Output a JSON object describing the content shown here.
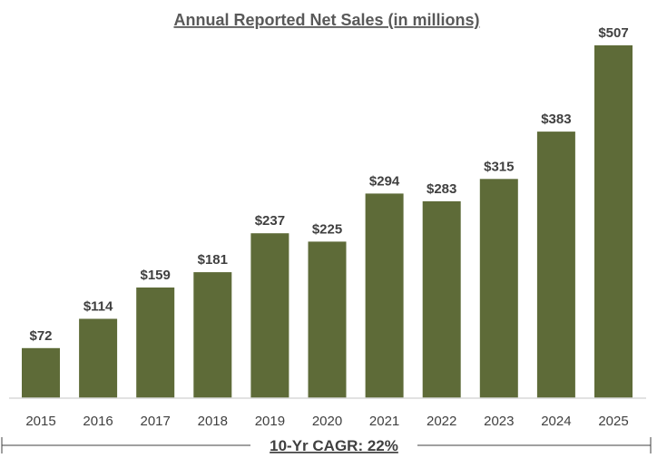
{
  "chart_data": {
    "type": "bar",
    "title": "Annual Reported Net Sales (in millions)",
    "categories": [
      "2015",
      "2016",
      "2017",
      "2018",
      "2019",
      "2020",
      "2021",
      "2022",
      "2023",
      "2024",
      "2025"
    ],
    "values": [
      72,
      114,
      159,
      181,
      237,
      225,
      294,
      283,
      315,
      383,
      507
    ],
    "value_labels": [
      "$72",
      "$114",
      "$159",
      "$181",
      "$237",
      "$225",
      "$294",
      "$283",
      "$315",
      "$383",
      "$507"
    ],
    "xlabel": "",
    "ylabel": "",
    "ylim": [
      0,
      507
    ],
    "grid": false,
    "bar_color": "#5e6b38",
    "annotation": "10-Yr CAGR: 22%"
  }
}
